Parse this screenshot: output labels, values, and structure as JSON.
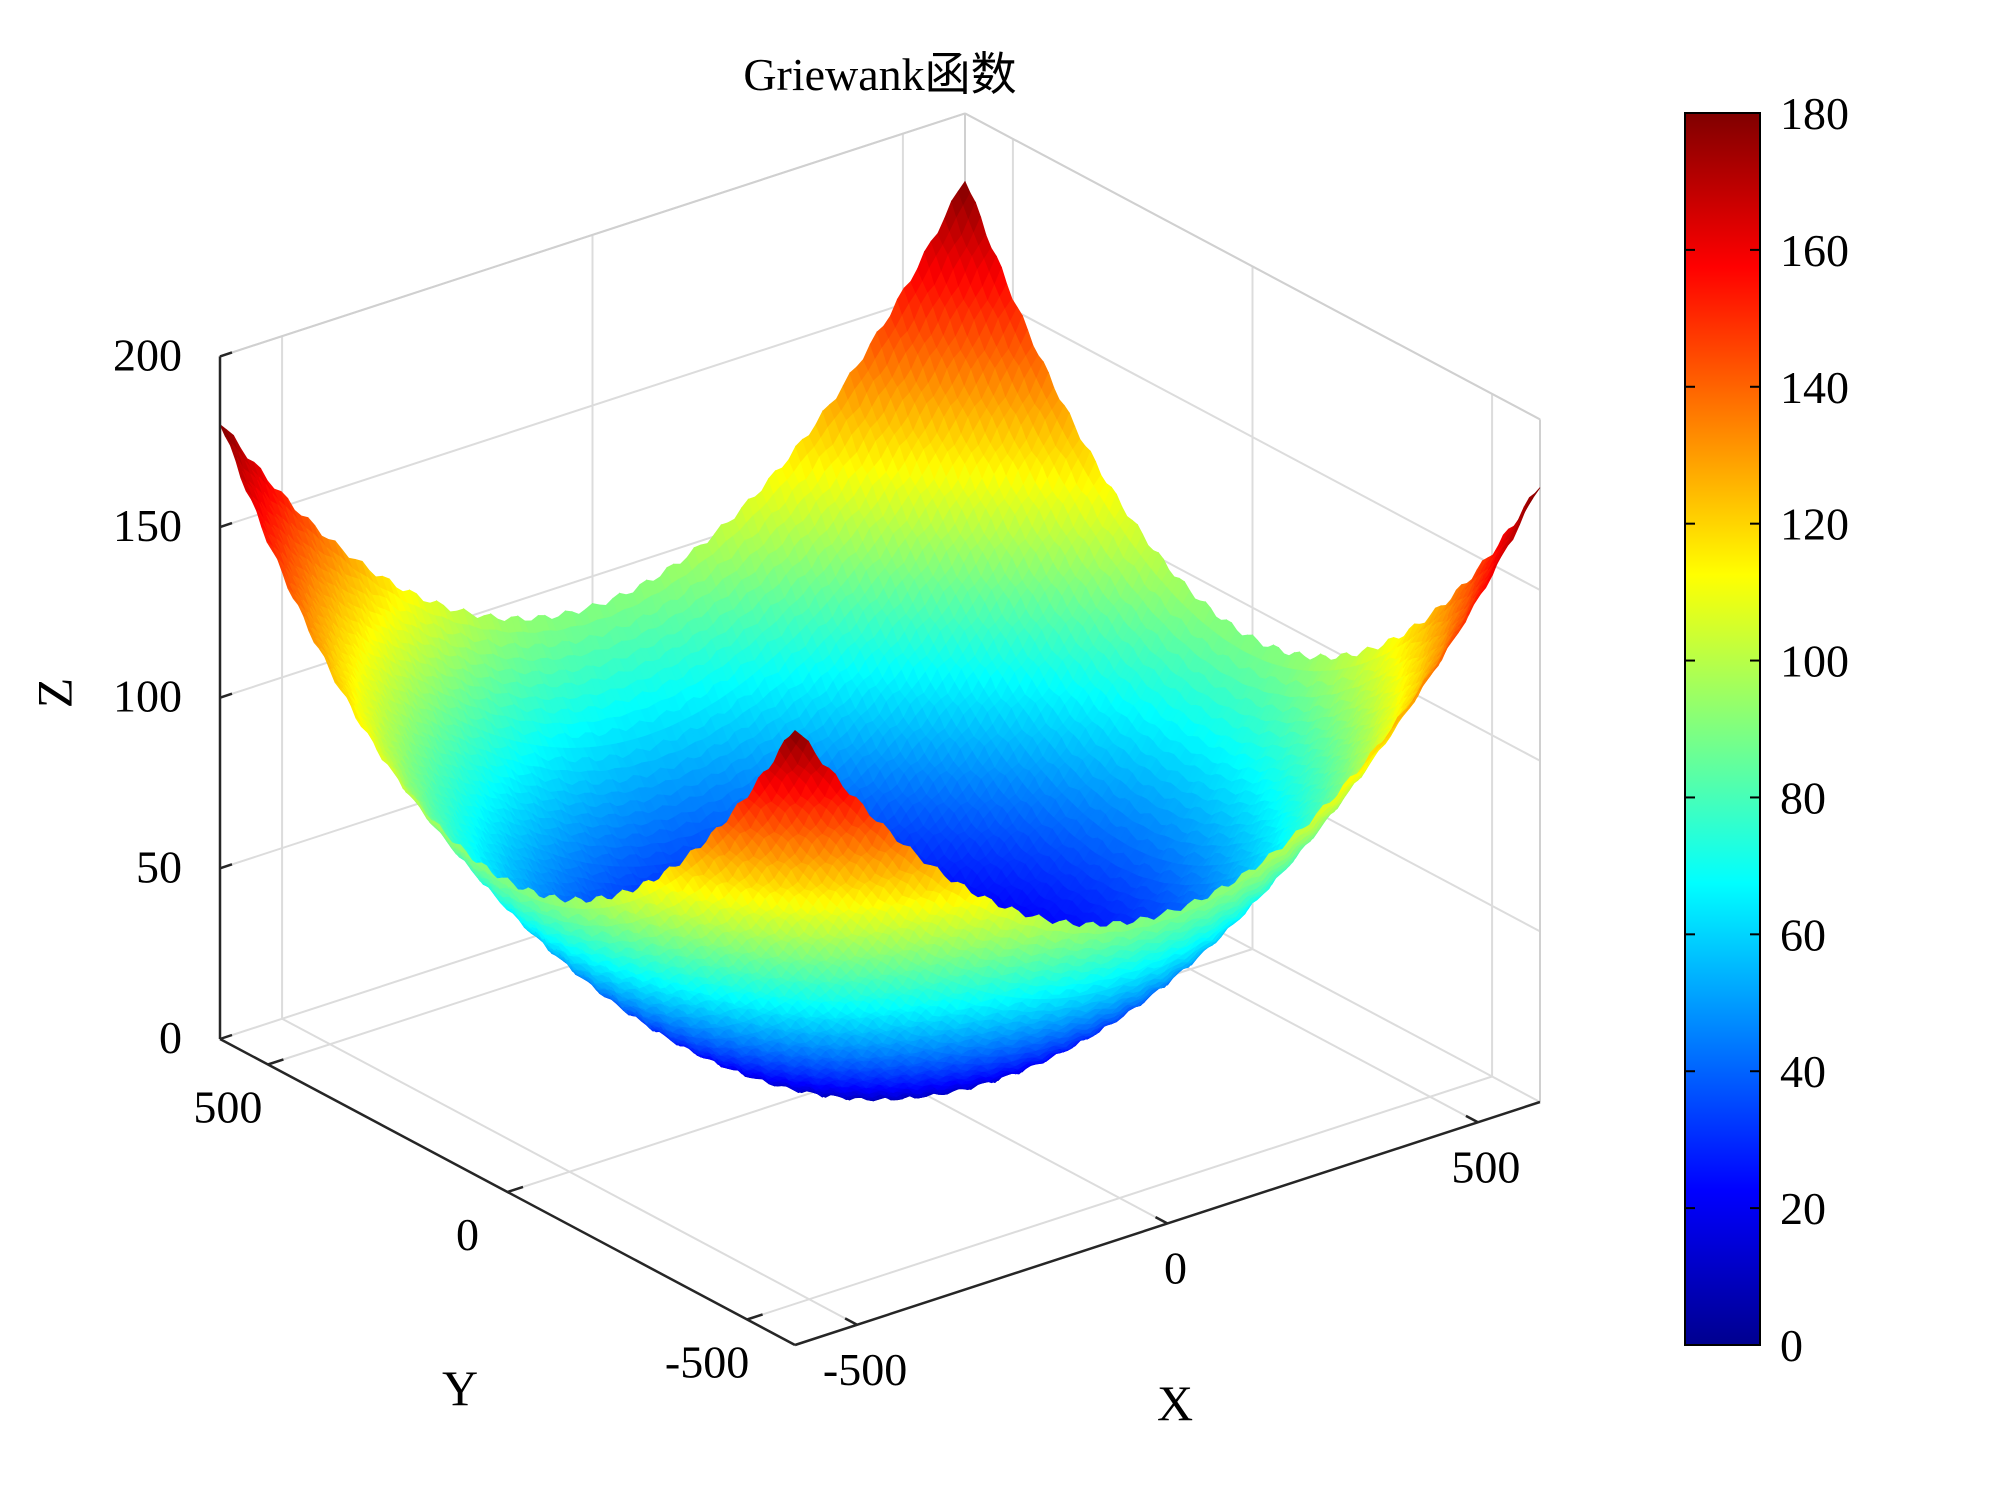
{
  "chart_data": {
    "type": "surface",
    "function": "Griewank",
    "title": "Griewank函数",
    "xlabel": "X",
    "ylabel": "Y",
    "zlabel": "Z",
    "xlim": [
      -600,
      600
    ],
    "ylim": [
      -600,
      600
    ],
    "zlim": [
      0,
      200
    ],
    "x_ticks": [
      {
        "value": -500,
        "label": "-500"
      },
      {
        "value": 0,
        "label": "0"
      },
      {
        "value": 500,
        "label": "500"
      }
    ],
    "y_ticks": [
      {
        "value": -500,
        "label": "-500"
      },
      {
        "value": 0,
        "label": "0"
      },
      {
        "value": 500,
        "label": "500"
      }
    ],
    "z_ticks": [
      {
        "value": 0,
        "label": "0"
      },
      {
        "value": 50,
        "label": "50"
      },
      {
        "value": 100,
        "label": "100"
      },
      {
        "value": 150,
        "label": "150"
      },
      {
        "value": 200,
        "label": "200"
      }
    ],
    "surface": {
      "x_range": [
        -600,
        600
      ],
      "y_range": [
        -600,
        600
      ],
      "z_min": 0,
      "z_max": 180,
      "corner_values": [
        {
          "x": -600,
          "y": -600,
          "z": 180
        },
        {
          "x": 600,
          "y": -600,
          "z": 180
        },
        {
          "x": 600,
          "y": 600,
          "z": 180
        },
        {
          "x": -600,
          "y": 600,
          "z": 180
        }
      ]
    },
    "colorbar": {
      "colormap": "jet",
      "range": [
        0,
        180
      ],
      "ticks": [
        {
          "value": 0,
          "label": "0"
        },
        {
          "value": 20,
          "label": "20"
        },
        {
          "value": 40,
          "label": "40"
        },
        {
          "value": 60,
          "label": "60"
        },
        {
          "value": 80,
          "label": "80"
        },
        {
          "value": 100,
          "label": "100"
        },
        {
          "value": 120,
          "label": "120"
        },
        {
          "value": 140,
          "label": "140"
        },
        {
          "value": 160,
          "label": "160"
        },
        {
          "value": 180,
          "label": "180"
        }
      ]
    },
    "grid": true,
    "box": true
  }
}
